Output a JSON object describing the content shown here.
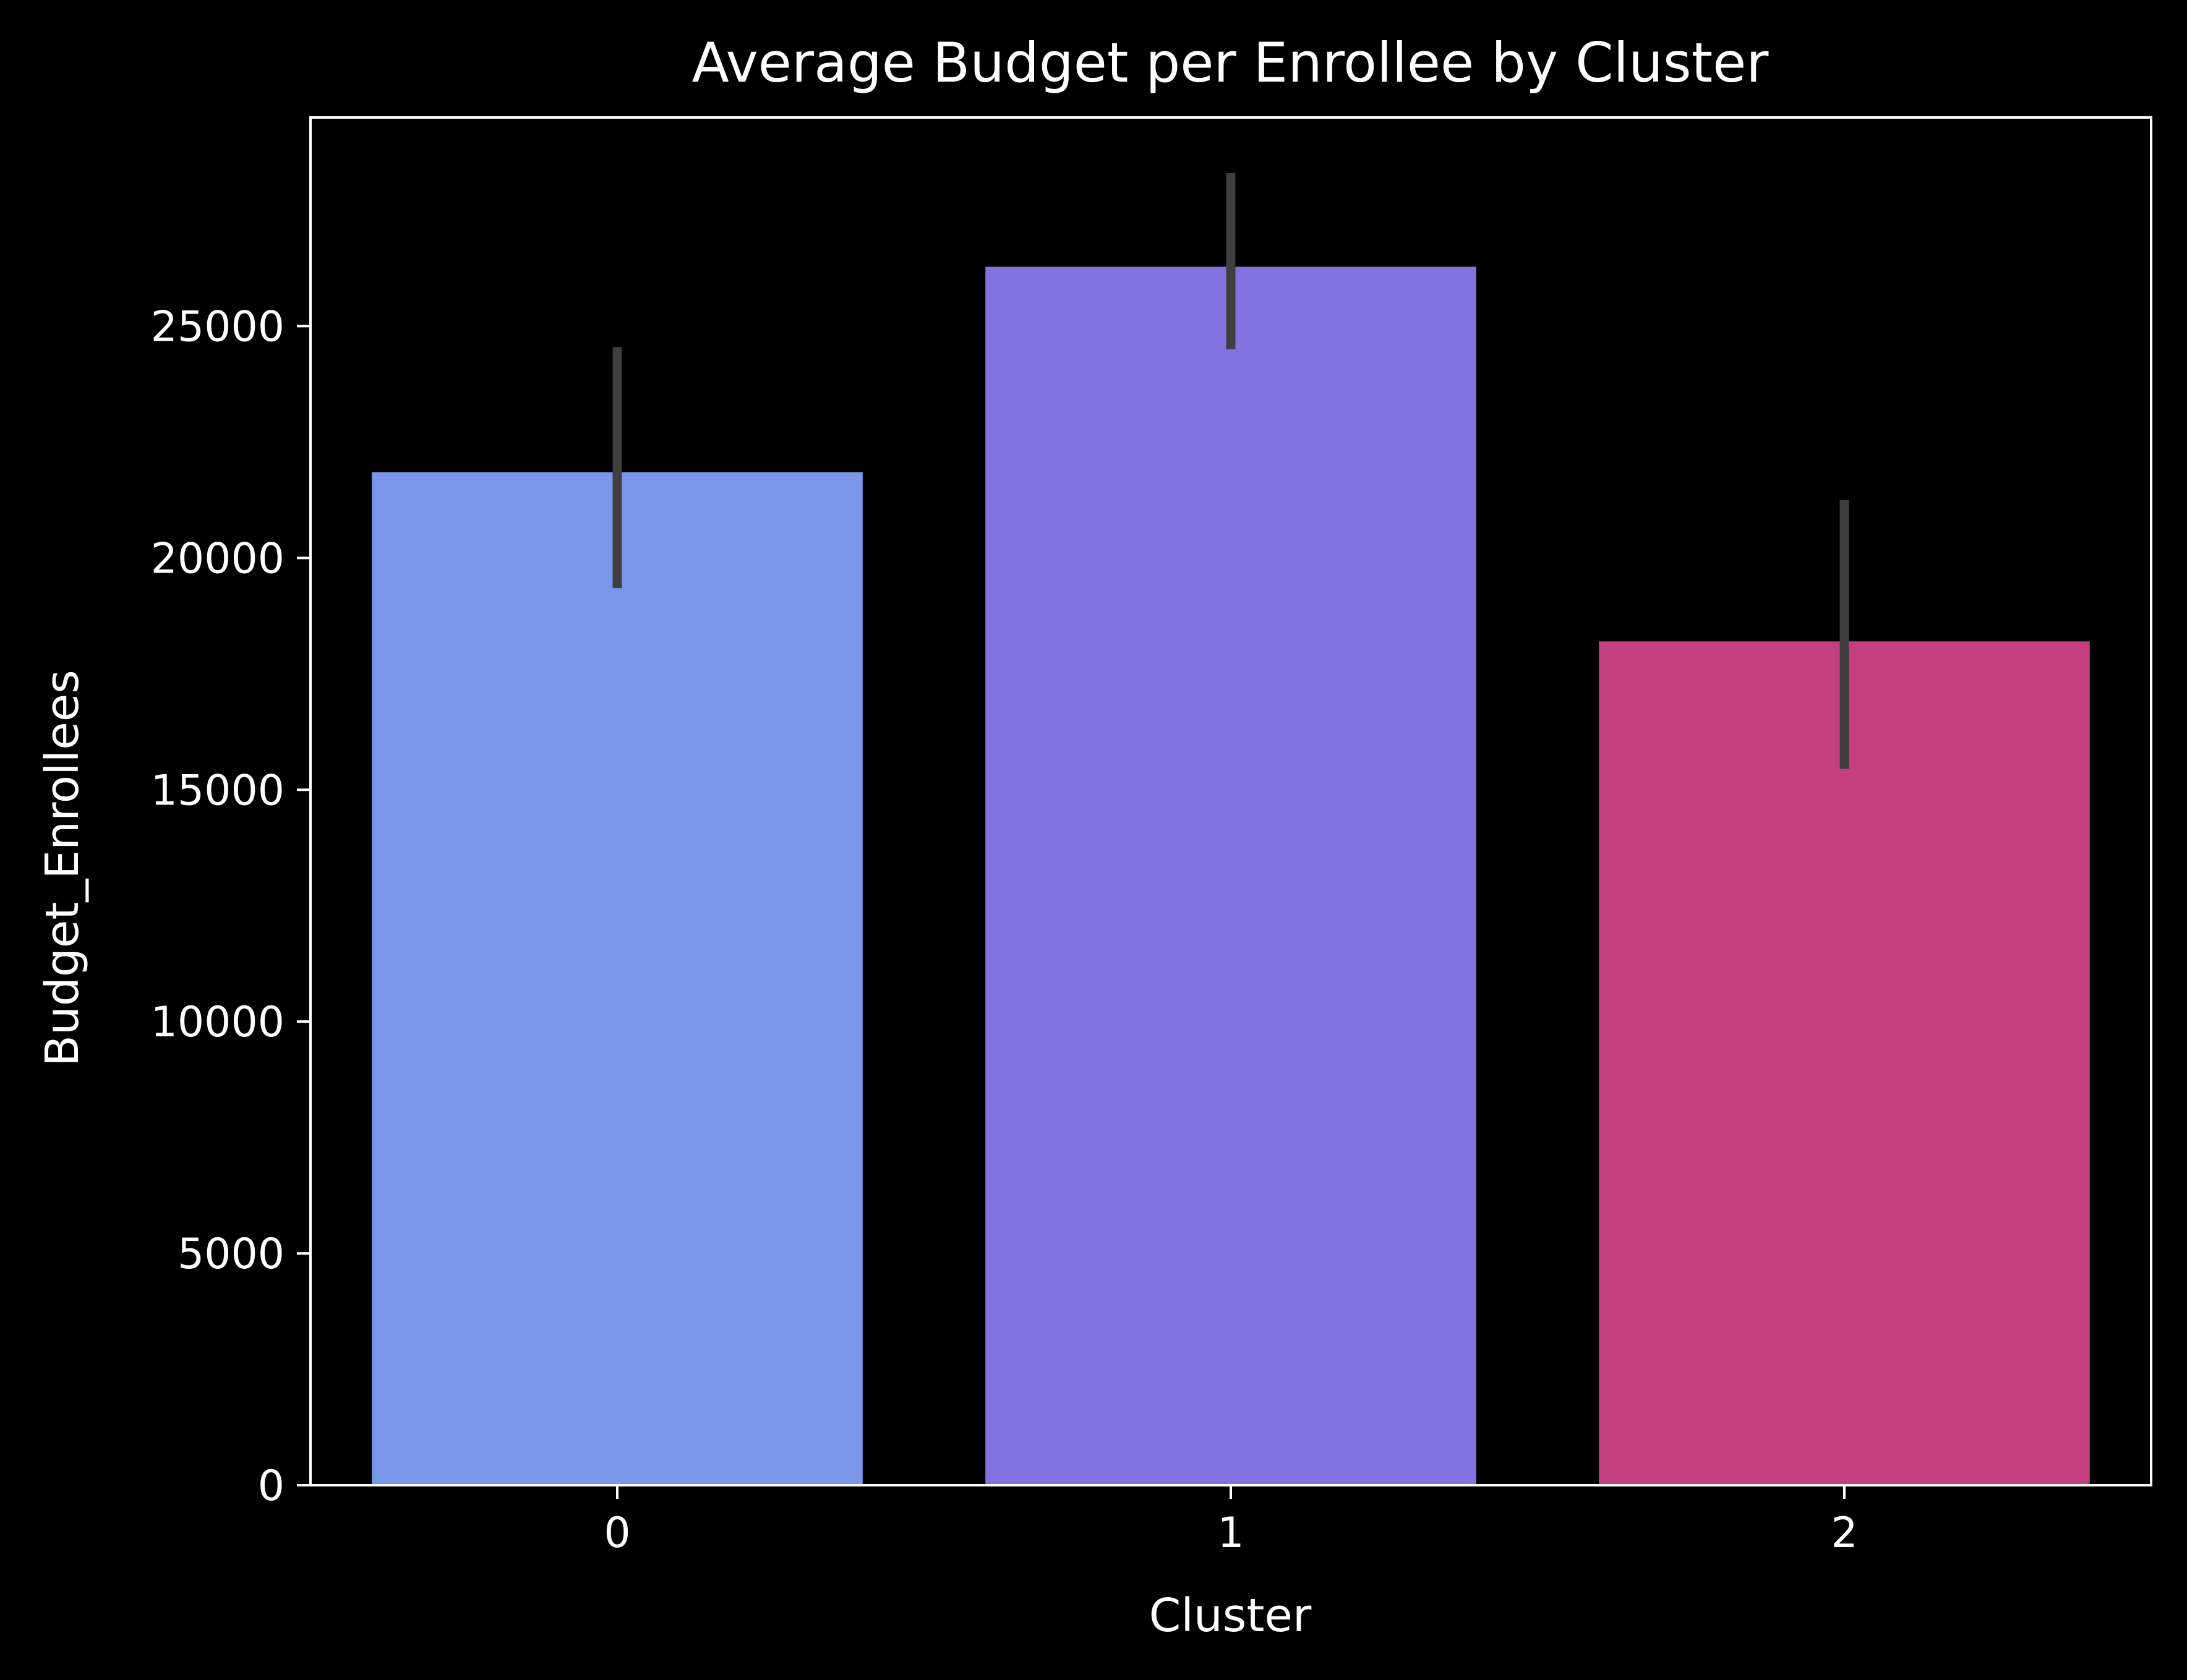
{
  "chart_data": {
    "type": "bar",
    "title": "Average Budget per Enrollee by Cluster",
    "xlabel": "Cluster",
    "ylabel": "Budget_Enrollees",
    "categories": [
      "0",
      "1",
      "2"
    ],
    "values": [
      21850,
      26280,
      18200
    ],
    "error_bars": [
      {
        "low": 19350,
        "high": 24550
      },
      {
        "low": 24500,
        "high": 28300
      },
      {
        "low": 15450,
        "high": 21250
      }
    ],
    "ylim": [
      0,
      29500
    ],
    "yticks": [
      0,
      5000,
      10000,
      15000,
      20000,
      25000
    ],
    "ytick_labels": [
      "0",
      "5000",
      "10000",
      "15000",
      "20000",
      "25000"
    ],
    "colors": [
      "#7b97ec",
      "#8373e0",
      "#c43f7e"
    ],
    "error_bar_color": "#3f3f3f",
    "background": "#000000",
    "axis_color": "#ffffff",
    "grid": false,
    "legend": "none"
  }
}
